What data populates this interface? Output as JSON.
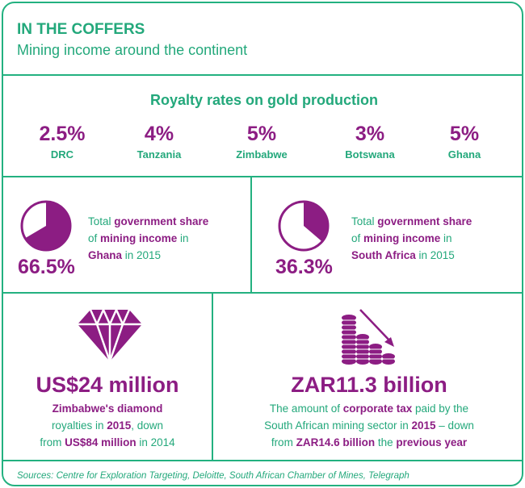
{
  "header": {
    "title": "IN THE COFFERS",
    "subtitle": "Mining income around the continent"
  },
  "royalty": {
    "title": "Royalty rates on gold production",
    "rates": [
      {
        "value": "2.5%",
        "country": "DRC"
      },
      {
        "value": "4%",
        "country": "Tanzania"
      },
      {
        "value": "5%",
        "country": "Zimbabwe"
      },
      {
        "value": "3%",
        "country": "Botswana"
      },
      {
        "value": "5%",
        "country": "Ghana"
      }
    ]
  },
  "ghana_share": {
    "percent": "66.5%",
    "fraction": 0.665,
    "text_1": "Total ",
    "text_2": "government share",
    "text_3": "of ",
    "text_4": "mining income",
    "text_5": " in",
    "text_6": "Ghana",
    "text_7": " in 2015"
  },
  "sa_share": {
    "percent": "36.3%",
    "fraction": 0.363,
    "text_1": "Total ",
    "text_2": "government share",
    "text_3": "of ",
    "text_4": "mining income",
    "text_5": " in",
    "text_6": "South Africa",
    "text_7": " in 2015"
  },
  "diamond": {
    "figure": "US$24 million",
    "line1": "Zimbabwe's diamond",
    "line2_a": "royalties in ",
    "line2_b": "2015",
    "line2_c": ", down",
    "line3_a": "from ",
    "line3_b": "US$84 million",
    "line3_c": " in 2014"
  },
  "corporate_tax": {
    "figure": "ZAR11.3 billion",
    "line1_a": "The amount of ",
    "line1_b": "corporate tax",
    "line1_c": " paid by the",
    "line2_a": "South African mining sector in ",
    "line2_b": "2015",
    "line2_c": " – down",
    "line3_a": "from ",
    "line3_b": "ZAR14.6 billion",
    "line3_c": " the ",
    "line3_d": "previous year"
  },
  "sources": "Sources: Centre for Exploration Targeting, Deloitte, South African Chamber of Mines, Telegraph",
  "colors": {
    "green": "#23a87b",
    "purple": "#8c1d83",
    "border": "#23b180"
  }
}
